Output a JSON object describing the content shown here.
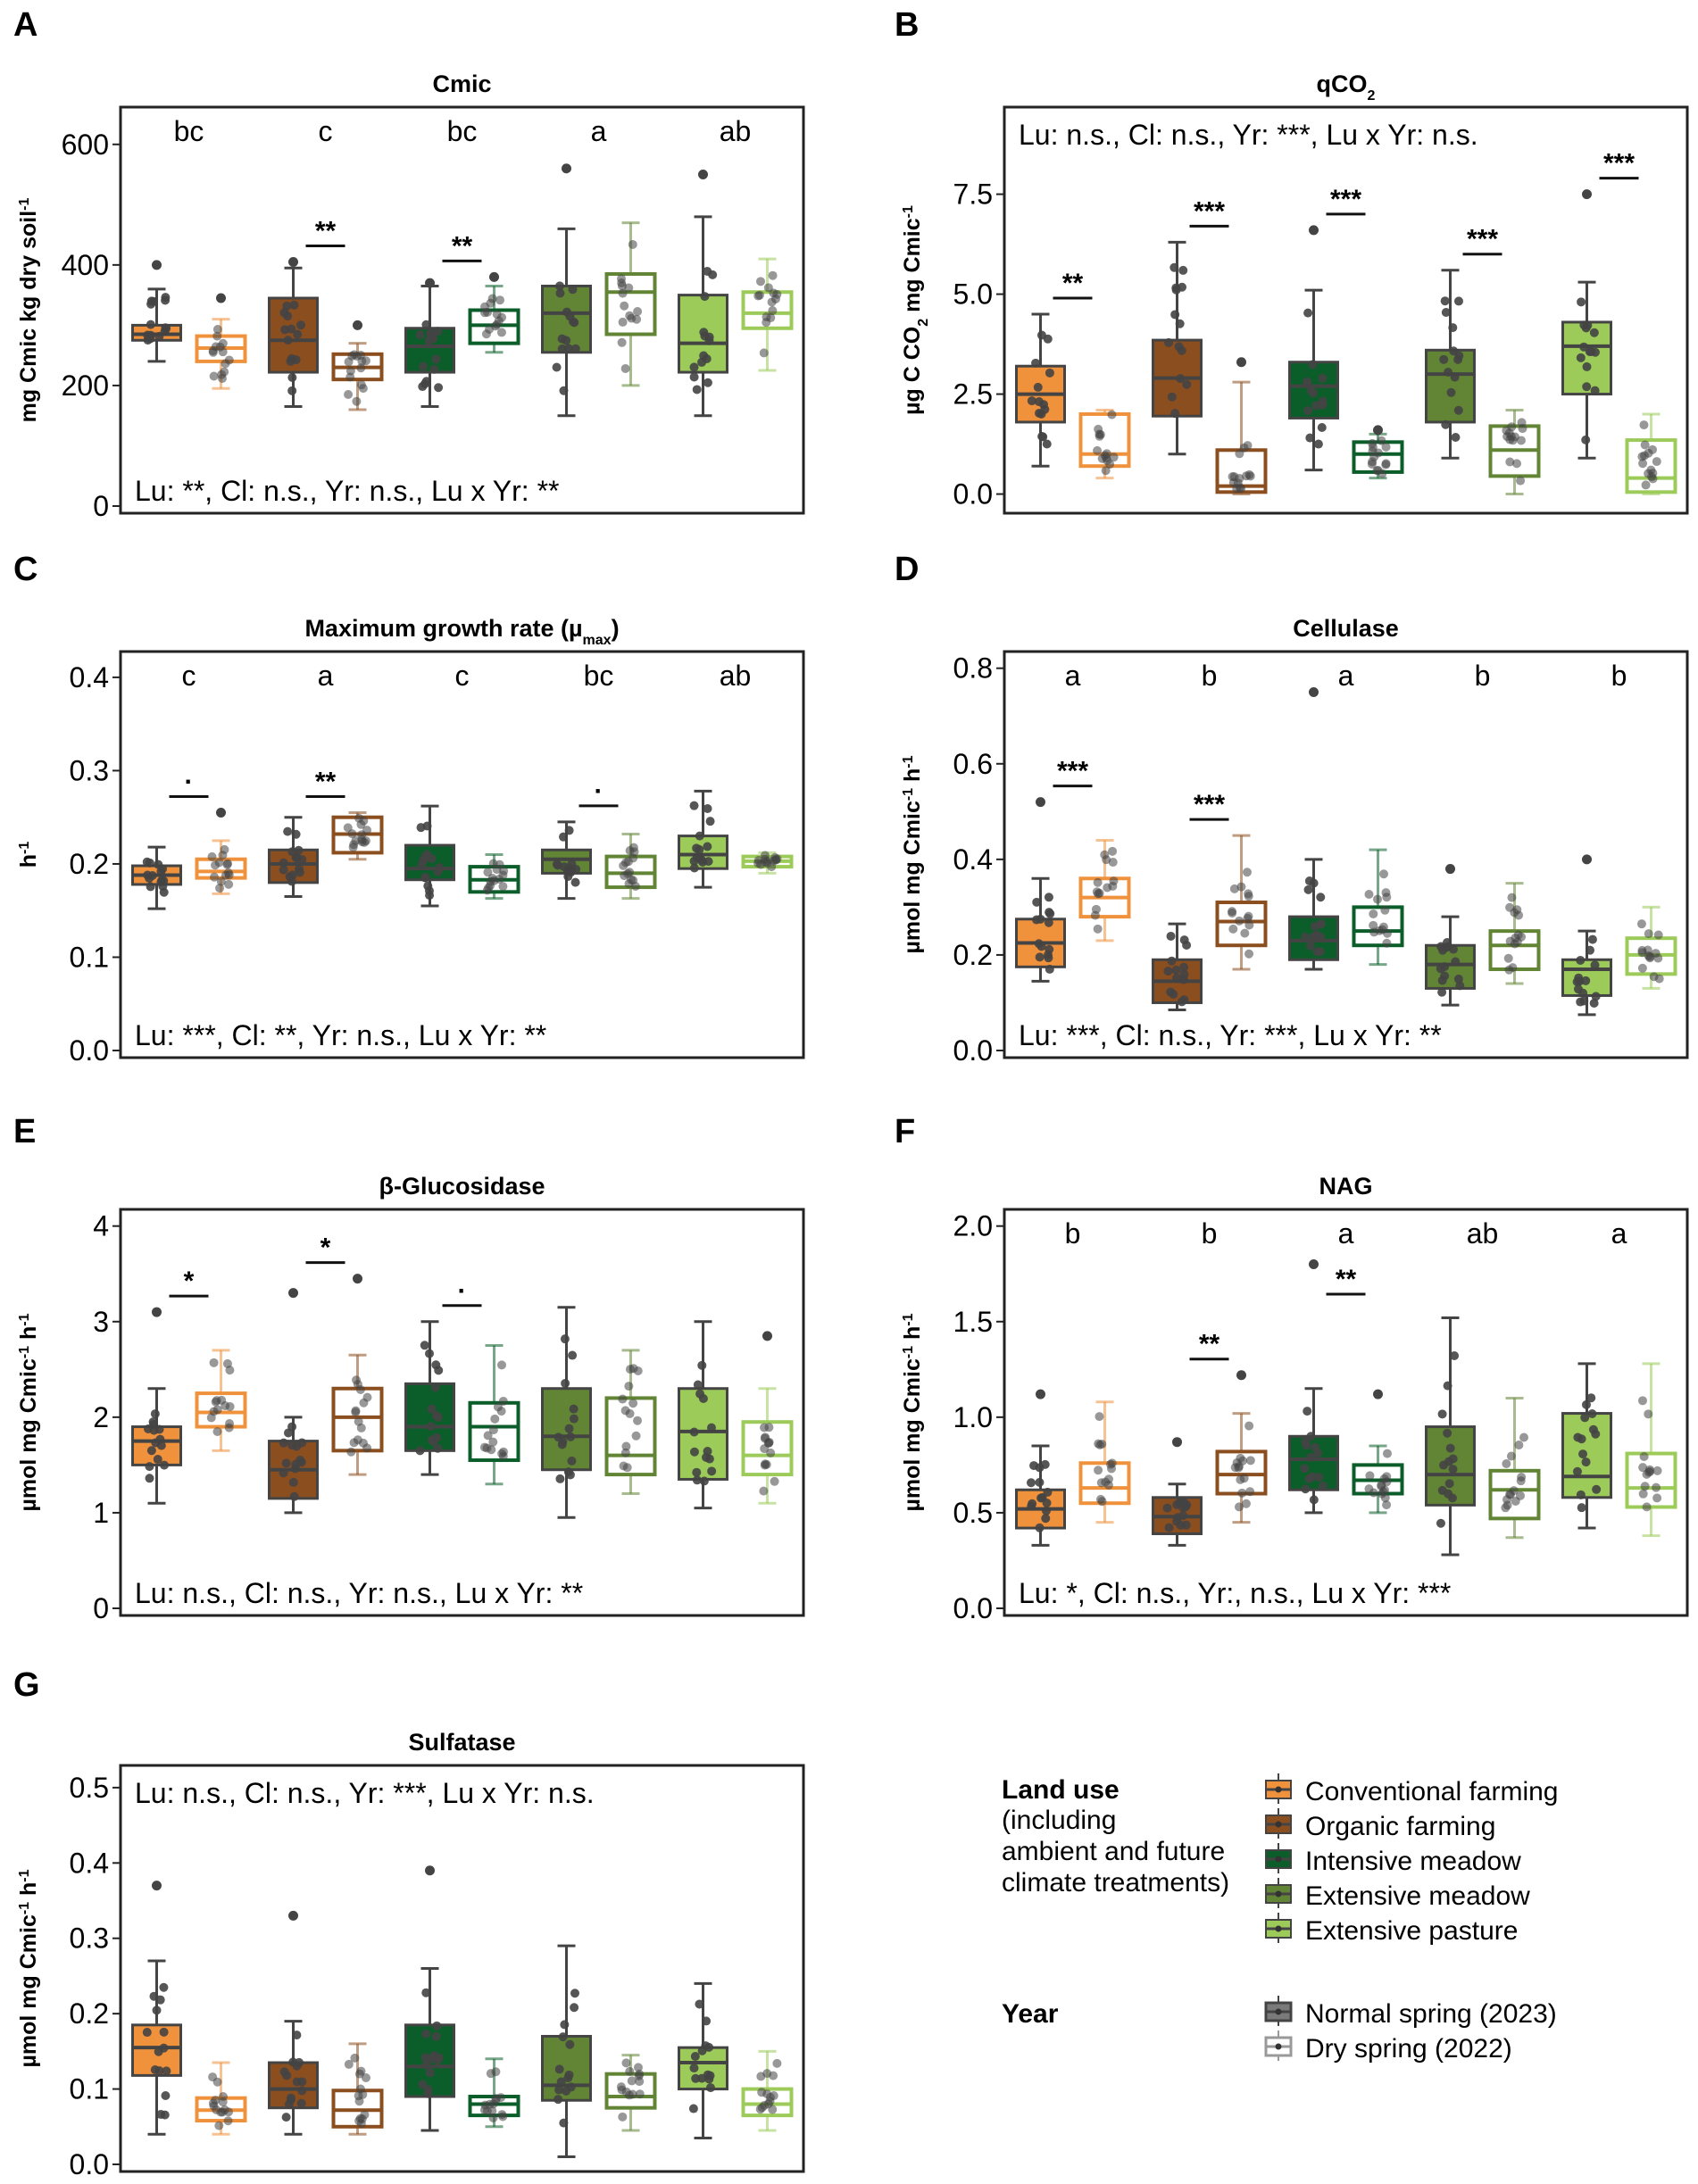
{
  "colors": {
    "conventional": "#F0923C",
    "organic": "#8B4E1E",
    "intensive_meadow": "#0B5E2A",
    "extensive_meadow": "#628535",
    "extensive_pasture": "#9CCB5A",
    "frame": "#222222",
    "dots": "#444444"
  },
  "legend": {
    "land_use_title": "Land use",
    "land_use_note": [
      "(including",
      "ambient and future",
      "climate treatments)"
    ],
    "land_use_items": [
      {
        "label": "Conventional farming",
        "color": "#F0923C"
      },
      {
        "label": "Organic farming",
        "color": "#8B4E1E"
      },
      {
        "label": "Intensive meadow",
        "color": "#0B5E2A"
      },
      {
        "label": "Extensive meadow",
        "color": "#628535"
      },
      {
        "label": "Extensive pasture",
        "color": "#9CCB5A"
      }
    ],
    "year_title": "Year",
    "year_items": [
      {
        "label": "Normal spring (2023)",
        "filled": true
      },
      {
        "label": "Dry spring (2022)",
        "filled": false
      }
    ]
  },
  "chart_data": [
    {
      "panel": "A",
      "type": "box",
      "title": "Cmic",
      "title_sub": "",
      "ylabel": "mg Cmic kg dry soil",
      "ylabel_sup": "-1",
      "ylim": [
        0,
        650
      ],
      "yticks": [
        {
          "v": 0,
          "t": "0"
        },
        {
          "v": 200,
          "t": "200"
        },
        {
          "v": 400,
          "t": "400"
        },
        {
          "v": 600,
          "t": "600"
        }
      ],
      "letters": [
        "bc",
        "c",
        "bc",
        "a",
        "ab"
      ],
      "stats": "Lu: **, Cl: n.s., Yr: n.s., Lu x Yr: **",
      "stats_pos": "bottom",
      "sig": [
        {
          "group": 1,
          "label": "**"
        },
        {
          "group": 2,
          "label": "**"
        }
      ],
      "groups": [
        {
          "normal": [
            240,
            275,
            285,
            300,
            360,
            400
          ],
          "dry": [
            195,
            240,
            262,
            282,
            310,
            345
          ]
        },
        {
          "normal": [
            165,
            222,
            275,
            345,
            395,
            405
          ],
          "dry": [
            160,
            210,
            230,
            252,
            270,
            300
          ]
        },
        {
          "normal": [
            165,
            222,
            265,
            295,
            365,
            370
          ],
          "dry": [
            255,
            270,
            300,
            325,
            365,
            380
          ]
        },
        {
          "normal": [
            150,
            255,
            320,
            365,
            460,
            560
          ],
          "dry": [
            200,
            285,
            355,
            385,
            470,
            470
          ]
        },
        {
          "normal": [
            150,
            222,
            270,
            350,
            480,
            550
          ],
          "dry": [
            225,
            295,
            320,
            355,
            410,
            410
          ]
        }
      ]
    },
    {
      "panel": "B",
      "type": "box",
      "title": "qCO",
      "title_sub": "2",
      "ylabel": "µg C CO",
      "ylabel_sub": "2",
      "ylabel_tail": " mg Cmic",
      "ylabel_sup": "-1",
      "ylim": [
        -0.3,
        9.5
      ],
      "yticks": [
        {
          "v": 0,
          "t": "0.0"
        },
        {
          "v": 2.5,
          "t": "2.5"
        },
        {
          "v": 5,
          "t": "5.0"
        },
        {
          "v": 7.5,
          "t": "7.5"
        }
      ],
      "letters": [],
      "stats": "Lu: n.s., Cl: n.s., Yr: ***, Lu x Yr: n.s.",
      "stats_pos": "top",
      "sig": [
        {
          "group": 0,
          "label": "**"
        },
        {
          "group": 1,
          "label": "***"
        },
        {
          "group": 2,
          "label": "***"
        },
        {
          "group": 3,
          "label": "***"
        },
        {
          "group": 4,
          "label": "***"
        }
      ],
      "groups": [
        {
          "normal": [
            0.7,
            1.8,
            2.5,
            3.2,
            4.5,
            4.5
          ],
          "dry": [
            0.4,
            0.7,
            1.0,
            2.0,
            2.1,
            2.1
          ]
        },
        {
          "normal": [
            1.0,
            1.95,
            2.9,
            3.85,
            6.3,
            6.3
          ],
          "dry": [
            0.0,
            0.05,
            0.2,
            1.1,
            2.8,
            3.3
          ]
        },
        {
          "normal": [
            0.6,
            1.9,
            2.7,
            3.3,
            5.1,
            6.6
          ],
          "dry": [
            0.4,
            0.55,
            1.0,
            1.3,
            1.5,
            1.6
          ]
        },
        {
          "normal": [
            0.9,
            1.8,
            3.0,
            3.6,
            5.6,
            5.6
          ],
          "dry": [
            0.0,
            0.45,
            1.1,
            1.7,
            2.1,
            2.1
          ]
        },
        {
          "normal": [
            0.9,
            2.5,
            3.7,
            4.3,
            5.3,
            7.5
          ],
          "dry": [
            0.0,
            0.05,
            0.4,
            1.35,
            2.0,
            2.0
          ]
        }
      ]
    },
    {
      "panel": "C",
      "type": "box",
      "title": "Maximum growth rate (µ",
      "title_sub": "max",
      "title_tail": ")",
      "ylabel": "h",
      "ylabel_sup": "-1",
      "ylim": [
        0,
        0.42
      ],
      "yticks": [
        {
          "v": 0,
          "t": "0.0"
        },
        {
          "v": 0.1,
          "t": "0.1"
        },
        {
          "v": 0.2,
          "t": "0.2"
        },
        {
          "v": 0.3,
          "t": "0.3"
        },
        {
          "v": 0.4,
          "t": "0.4"
        }
      ],
      "letters": [
        "c",
        "a",
        "c",
        "bc",
        "ab"
      ],
      "stats": "Lu: ***, Cl: **, Yr: n.s., Lu x Yr: **",
      "stats_pos": "bottom",
      "sig": [
        {
          "group": 0,
          "label": "·"
        },
        {
          "group": 1,
          "label": "**"
        },
        {
          "group": 3,
          "label": "·"
        }
      ],
      "groups": [
        {
          "normal": [
            0.152,
            0.178,
            0.188,
            0.198,
            0.218,
            0.218
          ],
          "dry": [
            0.168,
            0.185,
            0.192,
            0.205,
            0.225,
            0.255
          ]
        },
        {
          "normal": [
            0.165,
            0.18,
            0.2,
            0.215,
            0.25,
            0.25
          ],
          "dry": [
            0.205,
            0.212,
            0.232,
            0.25,
            0.255,
            0.255
          ]
        },
        {
          "normal": [
            0.155,
            0.183,
            0.195,
            0.22,
            0.262,
            0.262
          ],
          "dry": [
            0.163,
            0.17,
            0.183,
            0.197,
            0.21,
            0.21
          ]
        },
        {
          "normal": [
            0.163,
            0.19,
            0.205,
            0.215,
            0.245,
            0.245
          ],
          "dry": [
            0.163,
            0.175,
            0.19,
            0.208,
            0.232,
            0.232
          ]
        },
        {
          "normal": [
            0.175,
            0.195,
            0.21,
            0.23,
            0.278,
            0.278
          ],
          "dry": [
            0.19,
            0.197,
            0.203,
            0.208,
            0.212,
            0.212
          ]
        }
      ]
    },
    {
      "panel": "D",
      "type": "box",
      "title": "Cellulase",
      "title_sub": "",
      "ylabel": "µmol mg Cmic",
      "ylabel_sup": "-1",
      "ylabel_tail": " h",
      "ylabel_sup2": "-1",
      "ylim": [
        0,
        0.82
      ],
      "yticks": [
        {
          "v": 0,
          "t": "0.0"
        },
        {
          "v": 0.2,
          "t": "0.2"
        },
        {
          "v": 0.4,
          "t": "0.4"
        },
        {
          "v": 0.6,
          "t": "0.6"
        },
        {
          "v": 0.8,
          "t": "0.8"
        }
      ],
      "letters": [
        "a",
        "b",
        "a",
        "b",
        "b"
      ],
      "stats": "Lu: ***, Cl: n.s., Yr: ***, Lu x Yr: **",
      "stats_pos": "bottom",
      "sig": [
        {
          "group": 0,
          "label": "***"
        },
        {
          "group": 1,
          "label": "***"
        }
      ],
      "groups": [
        {
          "normal": [
            0.145,
            0.175,
            0.225,
            0.275,
            0.36,
            0.52
          ],
          "dry": [
            0.23,
            0.28,
            0.32,
            0.36,
            0.44,
            0.44
          ]
        },
        {
          "normal": [
            0.085,
            0.1,
            0.145,
            0.19,
            0.265,
            0.265
          ],
          "dry": [
            0.17,
            0.22,
            0.27,
            0.31,
            0.45,
            0.45
          ]
        },
        {
          "normal": [
            0.17,
            0.19,
            0.23,
            0.28,
            0.4,
            0.75
          ],
          "dry": [
            0.18,
            0.22,
            0.25,
            0.3,
            0.42,
            0.42
          ]
        },
        {
          "normal": [
            0.095,
            0.13,
            0.18,
            0.22,
            0.28,
            0.38
          ],
          "dry": [
            0.14,
            0.17,
            0.22,
            0.25,
            0.35,
            0.35
          ]
        },
        {
          "normal": [
            0.075,
            0.115,
            0.17,
            0.19,
            0.25,
            0.4
          ],
          "dry": [
            0.13,
            0.16,
            0.2,
            0.235,
            0.3,
            0.3
          ]
        }
      ]
    },
    {
      "panel": "E",
      "type": "box",
      "title": "β-Glucosidase",
      "title_sub": "",
      "ylabel": "µmol mg Cmic",
      "ylabel_sup": "-1",
      "ylabel_tail": " h",
      "ylabel_sup2": "-1",
      "ylim": [
        0,
        4.1
      ],
      "yticks": [
        {
          "v": 0,
          "t": "0"
        },
        {
          "v": 1,
          "t": "1"
        },
        {
          "v": 2,
          "t": "2"
        },
        {
          "v": 3,
          "t": "3"
        },
        {
          "v": 4,
          "t": "4"
        }
      ],
      "letters": [],
      "stats": "Lu: n.s., Cl: n.s., Yr: n.s., Lu x Yr: **",
      "stats_pos": "bottom",
      "sig": [
        {
          "group": 0,
          "label": "*"
        },
        {
          "group": 1,
          "label": "*"
        },
        {
          "group": 2,
          "label": "·"
        }
      ],
      "groups": [
        {
          "normal": [
            1.1,
            1.5,
            1.75,
            1.9,
            2.3,
            3.1
          ],
          "dry": [
            1.65,
            1.9,
            2.05,
            2.25,
            2.7,
            2.7
          ]
        },
        {
          "normal": [
            1.0,
            1.15,
            1.45,
            1.75,
            2.0,
            3.3
          ],
          "dry": [
            1.4,
            1.65,
            2.0,
            2.3,
            2.65,
            3.45
          ]
        },
        {
          "normal": [
            1.4,
            1.65,
            1.9,
            2.35,
            3.0,
            3.0
          ],
          "dry": [
            1.3,
            1.55,
            1.9,
            2.15,
            2.75,
            2.75
          ]
        },
        {
          "normal": [
            0.95,
            1.45,
            1.8,
            2.3,
            3.15,
            3.15
          ],
          "dry": [
            1.2,
            1.4,
            1.6,
            2.2,
            2.7,
            2.7
          ]
        },
        {
          "normal": [
            1.05,
            1.35,
            1.85,
            2.3,
            3.0,
            3.0
          ],
          "dry": [
            1.1,
            1.4,
            1.6,
            1.95,
            2.3,
            2.85
          ]
        }
      ]
    },
    {
      "panel": "F",
      "type": "box",
      "title": "NAG",
      "title_sub": "",
      "ylabel": "µmol mg Cmic",
      "ylabel_sup": "-1",
      "ylabel_tail": " h",
      "ylabel_sup2": "-1",
      "ylim": [
        0,
        2.05
      ],
      "yticks": [
        {
          "v": 0,
          "t": "0.0"
        },
        {
          "v": 0.5,
          "t": "0.5"
        },
        {
          "v": 1,
          "t": "1.0"
        },
        {
          "v": 1.5,
          "t": "1.5"
        },
        {
          "v": 2,
          "t": "2.0"
        }
      ],
      "letters": [
        "b",
        "b",
        "a",
        "ab",
        "a"
      ],
      "stats": "Lu: *, Cl: n.s., Yr:, n.s., Lu x Yr: ***",
      "stats_pos": "bottom",
      "sig": [
        {
          "group": 1,
          "label": "**"
        },
        {
          "group": 2,
          "label": "**"
        }
      ],
      "groups": [
        {
          "normal": [
            0.33,
            0.42,
            0.52,
            0.62,
            0.85,
            1.12
          ],
          "dry": [
            0.45,
            0.55,
            0.63,
            0.76,
            1.08,
            1.08
          ]
        },
        {
          "normal": [
            0.33,
            0.39,
            0.48,
            0.58,
            0.65,
            0.87
          ],
          "dry": [
            0.45,
            0.6,
            0.7,
            0.82,
            1.02,
            1.22
          ]
        },
        {
          "normal": [
            0.5,
            0.62,
            0.78,
            0.9,
            1.15,
            1.8
          ],
          "dry": [
            0.5,
            0.6,
            0.67,
            0.75,
            0.85,
            1.12
          ]
        },
        {
          "normal": [
            0.28,
            0.54,
            0.7,
            0.95,
            1.52,
            1.52
          ],
          "dry": [
            0.37,
            0.47,
            0.62,
            0.72,
            1.1,
            1.1
          ]
        },
        {
          "normal": [
            0.42,
            0.58,
            0.69,
            1.02,
            1.28,
            1.28
          ],
          "dry": [
            0.38,
            0.53,
            0.63,
            0.81,
            1.28,
            1.28
          ]
        }
      ]
    },
    {
      "panel": "G",
      "type": "box",
      "title": "Sulfatase",
      "title_sub": "",
      "ylabel": "µmol mg Cmic",
      "ylabel_sup": "-1",
      "ylabel_tail": " h",
      "ylabel_sup2": "-1",
      "ylim": [
        0,
        0.52
      ],
      "yticks": [
        {
          "v": 0,
          "t": "0.0"
        },
        {
          "v": 0.1,
          "t": "0.1"
        },
        {
          "v": 0.2,
          "t": "0.2"
        },
        {
          "v": 0.3,
          "t": "0.3"
        },
        {
          "v": 0.4,
          "t": "0.4"
        },
        {
          "v": 0.5,
          "t": "0.5"
        }
      ],
      "letters": [],
      "stats": "Lu: n.s., Cl: n.s., Yr: ***, Lu x Yr: n.s.",
      "stats_pos": "top",
      "sig": [],
      "groups": [
        {
          "normal": [
            0.04,
            0.118,
            0.155,
            0.185,
            0.27,
            0.37
          ],
          "dry": [
            0.04,
            0.058,
            0.072,
            0.088,
            0.135,
            0.135
          ]
        },
        {
          "normal": [
            0.04,
            0.075,
            0.1,
            0.135,
            0.19,
            0.33
          ],
          "dry": [
            0.04,
            0.05,
            0.072,
            0.098,
            0.16,
            0.16
          ]
        },
        {
          "normal": [
            0.045,
            0.09,
            0.13,
            0.185,
            0.26,
            0.39
          ],
          "dry": [
            0.05,
            0.065,
            0.08,
            0.09,
            0.14,
            0.14
          ]
        },
        {
          "normal": [
            0.01,
            0.085,
            0.105,
            0.17,
            0.29,
            0.29
          ],
          "dry": [
            0.045,
            0.075,
            0.09,
            0.12,
            0.145,
            0.145
          ]
        },
        {
          "normal": [
            0.035,
            0.1,
            0.135,
            0.155,
            0.24,
            0.24
          ],
          "dry": [
            0.045,
            0.065,
            0.08,
            0.1,
            0.15,
            0.15
          ]
        }
      ]
    }
  ]
}
